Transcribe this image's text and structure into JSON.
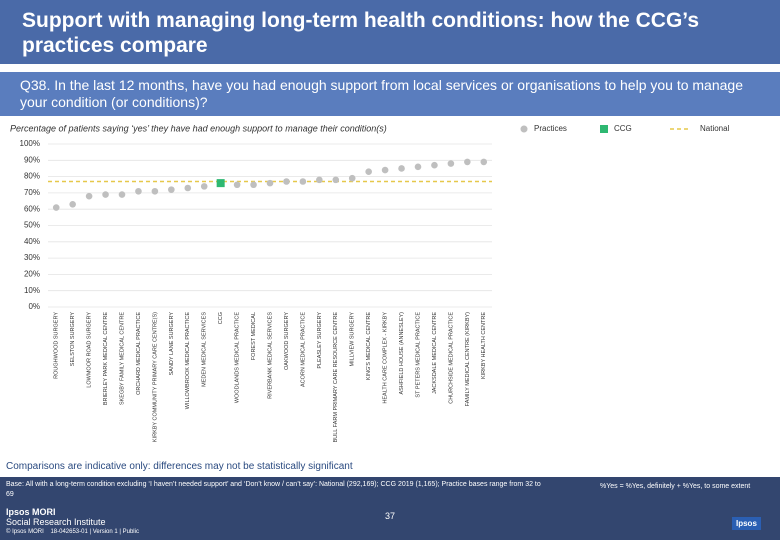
{
  "slide": {
    "title": "Support with managing long-term health conditions: how the CCG’s practices compare",
    "question": "Q38. In the last 12 months, have you had enough support from local services or organisations to help you to manage your condition (or conditions)?",
    "note": "Comparisons are indicative only: differences may not be statistically significant",
    "base": "Base: All with a long-term condition excluding ‘I haven’t needed support’ and ‘Don’t know / can’t say’: National (292,169); CCG 2019 (1,165); Practice bases range from 32 to 69",
    "definition": "%Yes = %Yes, definitely + %Yes, to some extent",
    "page_number": "37",
    "logo_name": "Ipsos MORI",
    "logo_sub": "Social Research Institute",
    "copyright": "© Ipsos MORI",
    "job": "18-042653-01 | Version 1 | Public",
    "brand": "Ipsos"
  },
  "chart_data": {
    "type": "dot",
    "subtitle": "Percentage of patients saying ‘yes’ they have had enough support to manage their condition(s)",
    "categories": [
      "ROUGHWOOD SURGERY",
      "SELSTON SURGERY",
      "LOWMOOR ROAD SURGERY",
      "BRIERLEY PARK MEDICAL CENTRE",
      "SKEGBY FAMILY MEDICAL CENTRE",
      "ORCHARD MEDICAL PRACTICE",
      "KIRKBY COMMUNITY PRIMARY CARE CENTRE(S)",
      "SANDY LANE SURGERY",
      "WILLOWBROOK MEDICAL PRACTICE",
      "MEDEN MEDICAL SERVICES",
      "CCG",
      "WOODLANDS MEDICAL PRACTICE",
      "FOREST MEDICAL",
      "RIVERBANK MEDICAL SERVICES",
      "OAKWOOD SURGERY",
      "ACORN MEDICAL PRACTICE",
      "PLEASLEY SURGERY",
      "BULL FARM PRIMARY CARE RESOURCE CENTRE",
      "MILLVIEW SURGERY",
      "KING'S MEDICAL CENTRE",
      "HEALTH CARE COMPLEX - KIRKBY",
      "ASHFIELD HOUSE (ANNESLEY)",
      "ST PETERS MEDICAL PRACTICE",
      "JACKSDALE MEDICAL CENTRE",
      "CHURCHSIDE MEDICAL PRACTICE",
      "FAMILY MEDICAL CENTRE (KIRKBY)",
      "KIRKBY HEALTH CENTRE"
    ],
    "series": [
      {
        "name": "Practices",
        "color": "#bfbfbf",
        "marker": "circle",
        "values": [
          61,
          63,
          68,
          69,
          69,
          71,
          71,
          72,
          73,
          74,
          null,
          75,
          75,
          76,
          77,
          77,
          78,
          78,
          79,
          83,
          84,
          85,
          86,
          87,
          88,
          89,
          89
        ]
      },
      {
        "name": "CCG",
        "color": "#2eb872",
        "marker": "square",
        "values": [
          null,
          null,
          null,
          null,
          null,
          null,
          null,
          null,
          null,
          null,
          76,
          null,
          null,
          null,
          null,
          null,
          null,
          null,
          null,
          null,
          null,
          null,
          null,
          null,
          null,
          null,
          null
        ]
      }
    ],
    "reference_lines": [
      {
        "name": "National",
        "value": 77,
        "color": "#e6c84a"
      }
    ],
    "ylim": [
      0,
      100
    ],
    "yticks": [
      {
        "value": 0,
        "label": "0%"
      },
      {
        "value": 10,
        "label": "10%"
      },
      {
        "value": 20,
        "label": "20%"
      },
      {
        "value": 30,
        "label": "30%"
      },
      {
        "value": 40,
        "label": "40%"
      },
      {
        "value": 50,
        "label": "50%"
      },
      {
        "value": 60,
        "label": "60%"
      },
      {
        "value": 70,
        "label": "70%"
      },
      {
        "value": 80,
        "label": "80%"
      },
      {
        "value": 90,
        "label": "90%"
      },
      {
        "value": 100,
        "label": "100%"
      }
    ],
    "grid": true
  }
}
